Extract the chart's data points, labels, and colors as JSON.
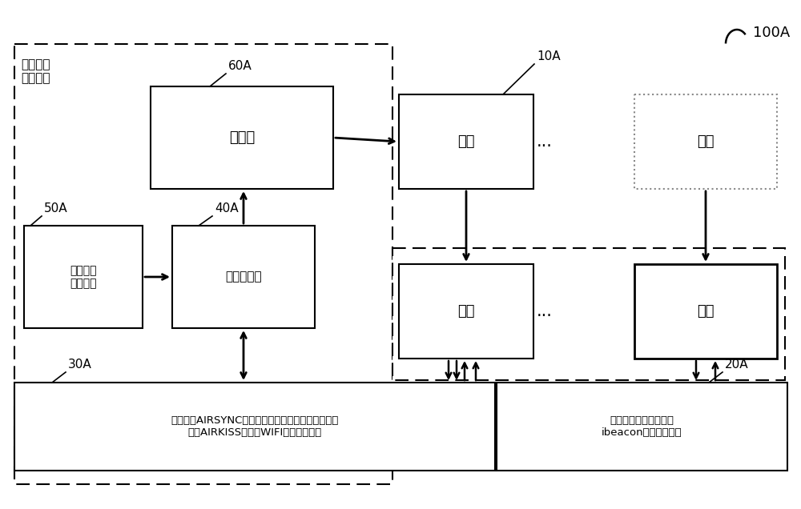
{
  "bg_color": "#ffffff",
  "fig_width": 10.0,
  "fig_height": 6.36,
  "label_100A": "100A",
  "label_10A": "10A",
  "label_60A": "60A",
  "label_50A": "50A",
  "label_40A": "40A",
  "label_30A": "30A",
  "label_20A": "20A",
  "text_interactive": "互动视频\n展示装置",
  "text_display": "显示器",
  "text_storage": "视频节目\n存储设备",
  "text_player": "视频播放器",
  "text_user1": "用户",
  "text_user2": "用户",
  "text_phone1": "手机",
  "text_phone2": "手机",
  "text_dots": "...",
  "text_30A": "符合微信AIRSYNC协议的蓝牙无线通信设备或者符合\n微信AIRKISS协议的WIFI无线通信设备",
  "text_20A": "符合微信播一播协议的\nibeacon无线发射设备"
}
